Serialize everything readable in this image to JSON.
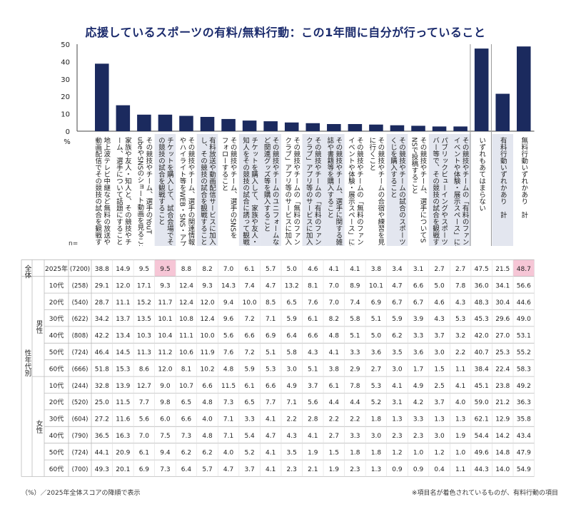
{
  "title": "応援しているスポーツの有料/無料行動：この1年間に自分が行っていること",
  "footnote_left": "（%）／2025年全体スコアの降順で表示",
  "footnote_right": "※項目名が着色されているものが、有料行動の項目",
  "percent_label": "%",
  "n_label": "n=",
  "colors": {
    "bar": "#1b2a5e",
    "paid_bg": "#e3e6ef",
    "highlight": "#f6c6d6",
    "border": "#bbbbbb",
    "title": "#1a2a6c"
  },
  "chart_data": {
    "type": "bar",
    "ylim": [
      0,
      50
    ],
    "yticks": [
      0,
      10,
      20,
      30,
      40,
      50
    ],
    "categories": [
      {
        "label": "地上波テレビ中継など無料の放送や動画配信でその競技の試合を観戦すること",
        "paid": false
      },
      {
        "label": "家族や友人・知人と、その競技やチーム、選手について話題にすること",
        "paid": false
      },
      {
        "label": "その競技やチーム、選手のYouTubeやSNSのショート動画を見ること",
        "paid": false
      },
      {
        "label": "チケットを購入して、試合会場でその競技の試合を観戦すること",
        "paid": true
      },
      {
        "label": "その競技やチーム、選手の関連情報やハイライト等をWEB・SNS・アプリ等で見ること",
        "paid": false
      },
      {
        "label": "有料放送や動画配信サービスに加入し、その競技の試合を観戦すること",
        "paid": true
      },
      {
        "label": "その競技やチーム、選手のSNSをフォローすること",
        "paid": false
      },
      {
        "label": "チケットを購入して、家族や友人・知人をその競技の試合に誘って観戦すること",
        "paid": true
      },
      {
        "label": "その競技やチームのユニフォームなど関連グッズ等を購入すること",
        "paid": true
      },
      {
        "label": "その競技やチームの「無料のファンクラブ」アプリ等のサービスに加入・登録すること",
        "paid": false
      },
      {
        "label": "その競技やチームの「有料のファンクラブ」アプリ等のサービスに加入・登録すること",
        "paid": true
      },
      {
        "label": "その競技やチーム、選手に関する雑誌や書籍等を購入すること",
        "paid": true
      },
      {
        "label": "その競技やチームの「無料のファンイベントや体験・展示スペース」に行くこと",
        "paid": false
      },
      {
        "label": "その競技やチームの合宿や練習を見に行くこと",
        "paid": false
      },
      {
        "label": "その競技やチームの試合のスポーツくじを購入すること",
        "paid": true
      },
      {
        "label": "その競技やチーム、選手についてSNSで投稿すること",
        "paid": false
      },
      {
        "label": "パブリックビューイングやスポーツバー等で、その競技の試合を観戦すること",
        "paid": true
      },
      {
        "label": "その競技やチームの「有料のファンイベントや体験・展示スペース」に行くこと",
        "paid": true
      },
      {
        "label": "いずれもあてはまらない",
        "paid": false
      },
      {
        "label": "有料行動いずれかあり　計",
        "paid": true
      },
      {
        "label": "無料行動いずれかあり　計",
        "paid": false
      }
    ],
    "series": [
      {
        "values": [
          38.8,
          14.9,
          9.5,
          9.5,
          8.8,
          8.2,
          7.0,
          6.1,
          5.7,
          5.0,
          4.6,
          4.1,
          4.1,
          3.8,
          3.4,
          3.1,
          2.7,
          2.7,
          47.5,
          21.5,
          48.7
        ]
      }
    ]
  },
  "table": {
    "overall_label": "全体",
    "segment_label": "性年代別",
    "rows": [
      {
        "group": "",
        "age": "2025年",
        "n": "(7200)",
        "values": [
          "38.8",
          "14.9",
          "9.5",
          "9.5",
          "8.8",
          "8.2",
          "7.0",
          "6.1",
          "5.7",
          "5.0",
          "4.6",
          "4.1",
          "4.1",
          "3.8",
          "3.4",
          "3.1",
          "2.7",
          "2.7",
          "47.5",
          "21.5",
          "48.7"
        ]
      },
      {
        "group": "男性",
        "age": "10代",
        "n": "(258)",
        "values": [
          "29.1",
          "12.0",
          "17.1",
          "9.3",
          "12.4",
          "9.3",
          "14.3",
          "7.4",
          "4.7",
          "13.2",
          "8.1",
          "7.0",
          "8.9",
          "10.1",
          "4.7",
          "6.6",
          "5.0",
          "7.8",
          "36.0",
          "34.1",
          "56.6"
        ]
      },
      {
        "group": "男性",
        "age": "20代",
        "n": "(540)",
        "values": [
          "28.7",
          "11.1",
          "15.2",
          "11.7",
          "12.4",
          "12.0",
          "9.4",
          "10.0",
          "8.5",
          "6.5",
          "7.6",
          "7.0",
          "7.4",
          "6.9",
          "6.7",
          "6.7",
          "4.6",
          "4.3",
          "48.3",
          "30.4",
          "44.6"
        ]
      },
      {
        "group": "男性",
        "age": "30代",
        "n": "(622)",
        "values": [
          "34.2",
          "13.7",
          "13.5",
          "10.1",
          "10.8",
          "12.4",
          "9.6",
          "7.2",
          "7.1",
          "5.9",
          "6.1",
          "8.2",
          "5.8",
          "5.1",
          "5.9",
          "3.9",
          "4.3",
          "5.3",
          "45.3",
          "29.6",
          "49.0"
        ]
      },
      {
        "group": "男性",
        "age": "40代",
        "n": "(808)",
        "values": [
          "42.2",
          "13.4",
          "10.3",
          "10.4",
          "11.1",
          "10.0",
          "5.6",
          "6.6",
          "6.9",
          "6.4",
          "6.6",
          "4.8",
          "5.1",
          "5.0",
          "6.2",
          "3.3",
          "3.7",
          "3.2",
          "42.0",
          "27.0",
          "53.1"
        ]
      },
      {
        "group": "男性",
        "age": "50代",
        "n": "(724)",
        "values": [
          "46.4",
          "14.5",
          "11.3",
          "11.2",
          "10.6",
          "11.9",
          "7.6",
          "7.2",
          "5.1",
          "5.8",
          "4.3",
          "4.1",
          "3.3",
          "3.6",
          "3.5",
          "3.6",
          "3.0",
          "2.2",
          "40.7",
          "25.3",
          "55.2"
        ]
      },
      {
        "group": "男性",
        "age": "60代",
        "n": "(666)",
        "values": [
          "51.8",
          "15.3",
          "8.6",
          "12.0",
          "8.1",
          "10.2",
          "4.8",
          "5.9",
          "5.3",
          "3.0",
          "5.1",
          "3.8",
          "2.9",
          "2.7",
          "3.0",
          "1.7",
          "1.5",
          "1.1",
          "38.4",
          "22.4",
          "58.3"
        ]
      },
      {
        "group": "女性",
        "age": "10代",
        "n": "(244)",
        "values": [
          "32.8",
          "13.9",
          "12.7",
          "9.0",
          "10.7",
          "6.6",
          "11.5",
          "6.1",
          "6.6",
          "4.9",
          "3.7",
          "6.1",
          "7.8",
          "5.3",
          "4.1",
          "4.9",
          "2.5",
          "4.1",
          "45.1",
          "23.8",
          "49.2"
        ]
      },
      {
        "group": "女性",
        "age": "20代",
        "n": "(520)",
        "values": [
          "25.0",
          "11.5",
          "7.7",
          "9.8",
          "6.5",
          "4.8",
          "7.3",
          "6.5",
          "7.7",
          "7.1",
          "5.6",
          "4.4",
          "4.4",
          "5.2",
          "3.1",
          "4.2",
          "3.7",
          "4.0",
          "59.0",
          "21.2",
          "36.3"
        ]
      },
      {
        "group": "女性",
        "age": "30代",
        "n": "(604)",
        "values": [
          "27.2",
          "11.6",
          "5.6",
          "6.0",
          "6.6",
          "4.0",
          "7.1",
          "3.3",
          "4.1",
          "2.2",
          "2.8",
          "2.2",
          "2.2",
          "1.8",
          "1.3",
          "3.3",
          "1.3",
          "1.3",
          "62.1",
          "12.9",
          "35.8"
        ]
      },
      {
        "group": "女性",
        "age": "40代",
        "n": "(790)",
        "values": [
          "36.5",
          "16.3",
          "7.0",
          "7.5",
          "7.3",
          "4.8",
          "7.1",
          "5.4",
          "4.7",
          "4.3",
          "4.1",
          "2.7",
          "3.3",
          "3.0",
          "2.3",
          "2.3",
          "3.0",
          "1.9",
          "54.4",
          "14.2",
          "43.4"
        ]
      },
      {
        "group": "女性",
        "age": "50代",
        "n": "(724)",
        "values": [
          "44.1",
          "20.9",
          "6.1",
          "9.4",
          "6.2",
          "6.2",
          "4.0",
          "5.2",
          "4.1",
          "3.5",
          "1.9",
          "1.5",
          "1.8",
          "1.8",
          "1.2",
          "1.0",
          "1.2",
          "1.0",
          "49.6",
          "14.8",
          "47.9"
        ]
      },
      {
        "group": "女性",
        "age": "60代",
        "n": "(700)",
        "values": [
          "49.3",
          "20.1",
          "6.9",
          "7.3",
          "6.4",
          "5.7",
          "4.7",
          "3.7",
          "4.1",
          "2.3",
          "2.1",
          "1.9",
          "2.3",
          "1.3",
          "0.9",
          "0.9",
          "0.4",
          "1.1",
          "44.3",
          "14.0",
          "54.9"
        ]
      }
    ],
    "highlight_cells": [
      [
        0,
        3
      ],
      [
        0,
        20
      ]
    ]
  }
}
